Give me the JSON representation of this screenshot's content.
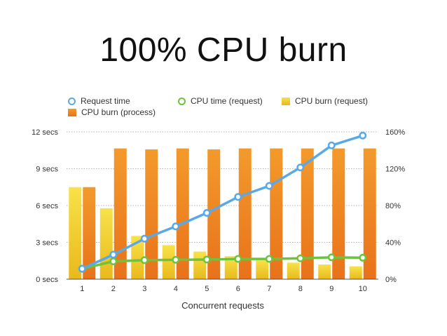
{
  "title": "100% CPU burn",
  "chart_data": {
    "type": "bar",
    "title": "100% CPU burn",
    "xlabel": "Concurrent requests",
    "ylabel": "",
    "ylabel_right": "",
    "categories": [
      "1",
      "2",
      "3",
      "4",
      "5",
      "6",
      "7",
      "8",
      "9",
      "10"
    ],
    "ylim_left": [
      0,
      12
    ],
    "ylim_right": [
      0,
      160
    ],
    "left_ticks": [
      {
        "value": 0,
        "label": "0 secs"
      },
      {
        "value": 3,
        "label": "3 secs"
      },
      {
        "value": 6,
        "label": "6 secs"
      },
      {
        "value": 9,
        "label": "9 secs"
      },
      {
        "value": 12,
        "label": "12 secs"
      }
    ],
    "right_ticks": [
      {
        "value": 0,
        "label": "0%"
      },
      {
        "value": 40,
        "label": "40%"
      },
      {
        "value": 80,
        "label": "80%"
      },
      {
        "value": 120,
        "label": "120%"
      },
      {
        "value": 160,
        "label": "160%"
      }
    ],
    "grid": true,
    "legend_position": "top",
    "series": [
      {
        "name": "Request time",
        "type": "line",
        "axis": "left",
        "color": "#5aa9e6",
        "values": [
          0.85,
          2.0,
          3.3,
          4.3,
          5.4,
          6.7,
          7.6,
          9.1,
          10.9,
          11.7
        ]
      },
      {
        "name": "CPU time (request)",
        "type": "line",
        "axis": "left",
        "color": "#6ec23e",
        "values": [
          0.85,
          1.45,
          1.55,
          1.58,
          1.6,
          1.65,
          1.65,
          1.7,
          1.78,
          1.75
        ]
      },
      {
        "name": "CPU burn (request)",
        "type": "bar",
        "axis": "right",
        "color": "#f3cf2a",
        "values": [
          100,
          77,
          47,
          37,
          30,
          25,
          21,
          18,
          16,
          14
        ]
      },
      {
        "name": "CPU burn (process)",
        "type": "bar",
        "axis": "right",
        "color": "#ef8a1c",
        "values": [
          100,
          142,
          141,
          142,
          141,
          142,
          142,
          142,
          142,
          142
        ]
      }
    ]
  }
}
